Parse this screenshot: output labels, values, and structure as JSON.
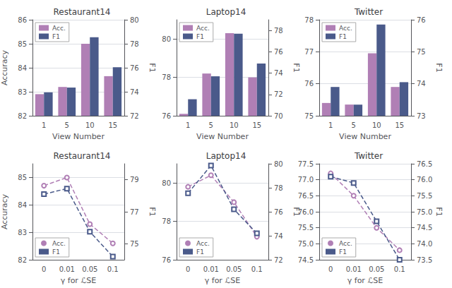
{
  "chart_data": [
    {
      "type": "bar",
      "title": "Restaurant14",
      "xlabel": "View Number",
      "ylabel": "Accuracy",
      "y2label": "F1",
      "categories": [
        "1",
        "5",
        "10",
        "15"
      ],
      "series": [
        {
          "name": "Acc.",
          "color": "#b07fb5",
          "values": [
            82.9,
            83.2,
            85.0,
            83.65
          ]
        },
        {
          "name": "F1",
          "color": "#4a5a8a",
          "axis": "y2",
          "values": [
            73.95,
            74.35,
            78.55,
            76.05
          ]
        }
      ],
      "ylim": [
        82,
        86
      ],
      "yticks": [
        82,
        83,
        84,
        85,
        86
      ],
      "y2lim": [
        72,
        80
      ],
      "y2ticks": [
        72,
        74,
        76,
        78,
        80
      ],
      "grid": true,
      "legend": "upper left"
    },
    {
      "type": "bar",
      "title": "Laptop14",
      "xlabel": "View Number",
      "y2label": "F1",
      "categories": [
        "1",
        "5",
        "10",
        "15"
      ],
      "series": [
        {
          "name": "Acc.",
          "color": "#b07fb5",
          "values": [
            76.1,
            78.2,
            80.3,
            78.0
          ]
        },
        {
          "name": "F1",
          "color": "#4a5a8a",
          "axis": "y2",
          "values": [
            71.55,
            73.7,
            77.7,
            74.9
          ]
        }
      ],
      "ylim": [
        76,
        81
      ],
      "yticks": [
        76,
        78,
        80
      ],
      "y2lim": [
        70,
        79
      ],
      "y2ticks": [
        70,
        72,
        74,
        76,
        78
      ],
      "grid": true,
      "legend": "upper left"
    },
    {
      "type": "bar",
      "title": "Twitter",
      "xlabel": "View Number",
      "y2label": "F1",
      "categories": [
        "1",
        "5",
        "10",
        "15"
      ],
      "series": [
        {
          "name": "Acc.",
          "color": "#b07fb5",
          "values": [
            75.4,
            75.35,
            76.95,
            75.9
          ]
        },
        {
          "name": "F1",
          "color": "#4a5a8a",
          "axis": "y2",
          "values": [
            73.9,
            73.35,
            75.85,
            74.05
          ]
        }
      ],
      "ylim": [
        75,
        78
      ],
      "yticks": [
        75,
        76,
        77,
        78
      ],
      "y2lim": [
        73,
        76
      ],
      "y2ticks": [
        73,
        74,
        75,
        76
      ],
      "grid": true,
      "legend": "upper left"
    },
    {
      "type": "line",
      "title": "Restaurant14",
      "xlabel": "γ for ℒSE",
      "ylabel": "Accuracy",
      "y2label": "F1",
      "categories": [
        "0",
        "0.01",
        "0.05",
        "0.1"
      ],
      "series": [
        {
          "name": "Acc.",
          "color": "#b07fb5",
          "marker": "circle",
          "line_style": "dashed",
          "values": [
            84.7,
            85.0,
            83.3,
            82.6
          ]
        },
        {
          "name": "F1",
          "color": "#4a5a8a",
          "marker": "square",
          "line_style": "dashed",
          "axis": "y2",
          "values": [
            78.1,
            78.45,
            75.75,
            74.2
          ]
        }
      ],
      "ylim": [
        82,
        85.5
      ],
      "yticks": [
        82,
        83,
        84,
        85
      ],
      "y2lim": [
        74,
        80
      ],
      "y2ticks": [
        75,
        77,
        79
      ],
      "grid": true,
      "legend": "lower left"
    },
    {
      "type": "line",
      "title": "Laptop14",
      "xlabel": "γ for ℒSE",
      "y2label": "F1",
      "categories": [
        "0",
        "0.01",
        "0.05",
        "0.1"
      ],
      "series": [
        {
          "name": "Acc.",
          "color": "#b07fb5",
          "marker": "circle",
          "line_style": "dashed",
          "values": [
            79.8,
            80.4,
            79.0,
            77.2
          ]
        },
        {
          "name": "F1",
          "color": "#4a5a8a",
          "marker": "square",
          "line_style": "dashed",
          "axis": "y2",
          "values": [
            77.55,
            79.85,
            76.2,
            74.2
          ]
        }
      ],
      "ylim": [
        76,
        81
      ],
      "yticks": [
        76,
        78,
        80
      ],
      "y2lim": [
        72,
        80
      ],
      "y2ticks": [
        72,
        74,
        76,
        78,
        80
      ],
      "grid": true,
      "legend": "lower left"
    },
    {
      "type": "line",
      "title": "Twitter",
      "xlabel": "γ for ℒSE",
      "y2label": "F1",
      "categories": [
        "0",
        "0.01",
        "0.05",
        "0.1"
      ],
      "series": [
        {
          "name": "Acc.",
          "color": "#b07fb5",
          "marker": "circle",
          "line_style": "dashed",
          "values": [
            77.2,
            76.5,
            75.5,
            74.8
          ]
        },
        {
          "name": "F1",
          "color": "#4a5a8a",
          "marker": "square",
          "line_style": "dashed",
          "axis": "y2",
          "values": [
            76.1,
            75.9,
            74.7,
            73.5
          ]
        }
      ],
      "ylim": [
        74.5,
        77.5
      ],
      "yticks": [
        74.5,
        {
          "value": 75,
          "label": "75.0"
        },
        75.5,
        {
          "value": 76,
          "label": "76.0"
        },
        76.5,
        {
          "value": 77,
          "label": "77.0"
        },
        77.5
      ],
      "y2lim": [
        73.5,
        76.5
      ],
      "y2ticks": [
        73.5,
        {
          "value": 74,
          "label": "74.0"
        },
        74.5,
        {
          "value": 75,
          "label": "75.0"
        },
        75.5,
        {
          "value": 76,
          "label": "76.0"
        },
        76.5
      ],
      "grid": true,
      "legend": "lower left"
    }
  ]
}
